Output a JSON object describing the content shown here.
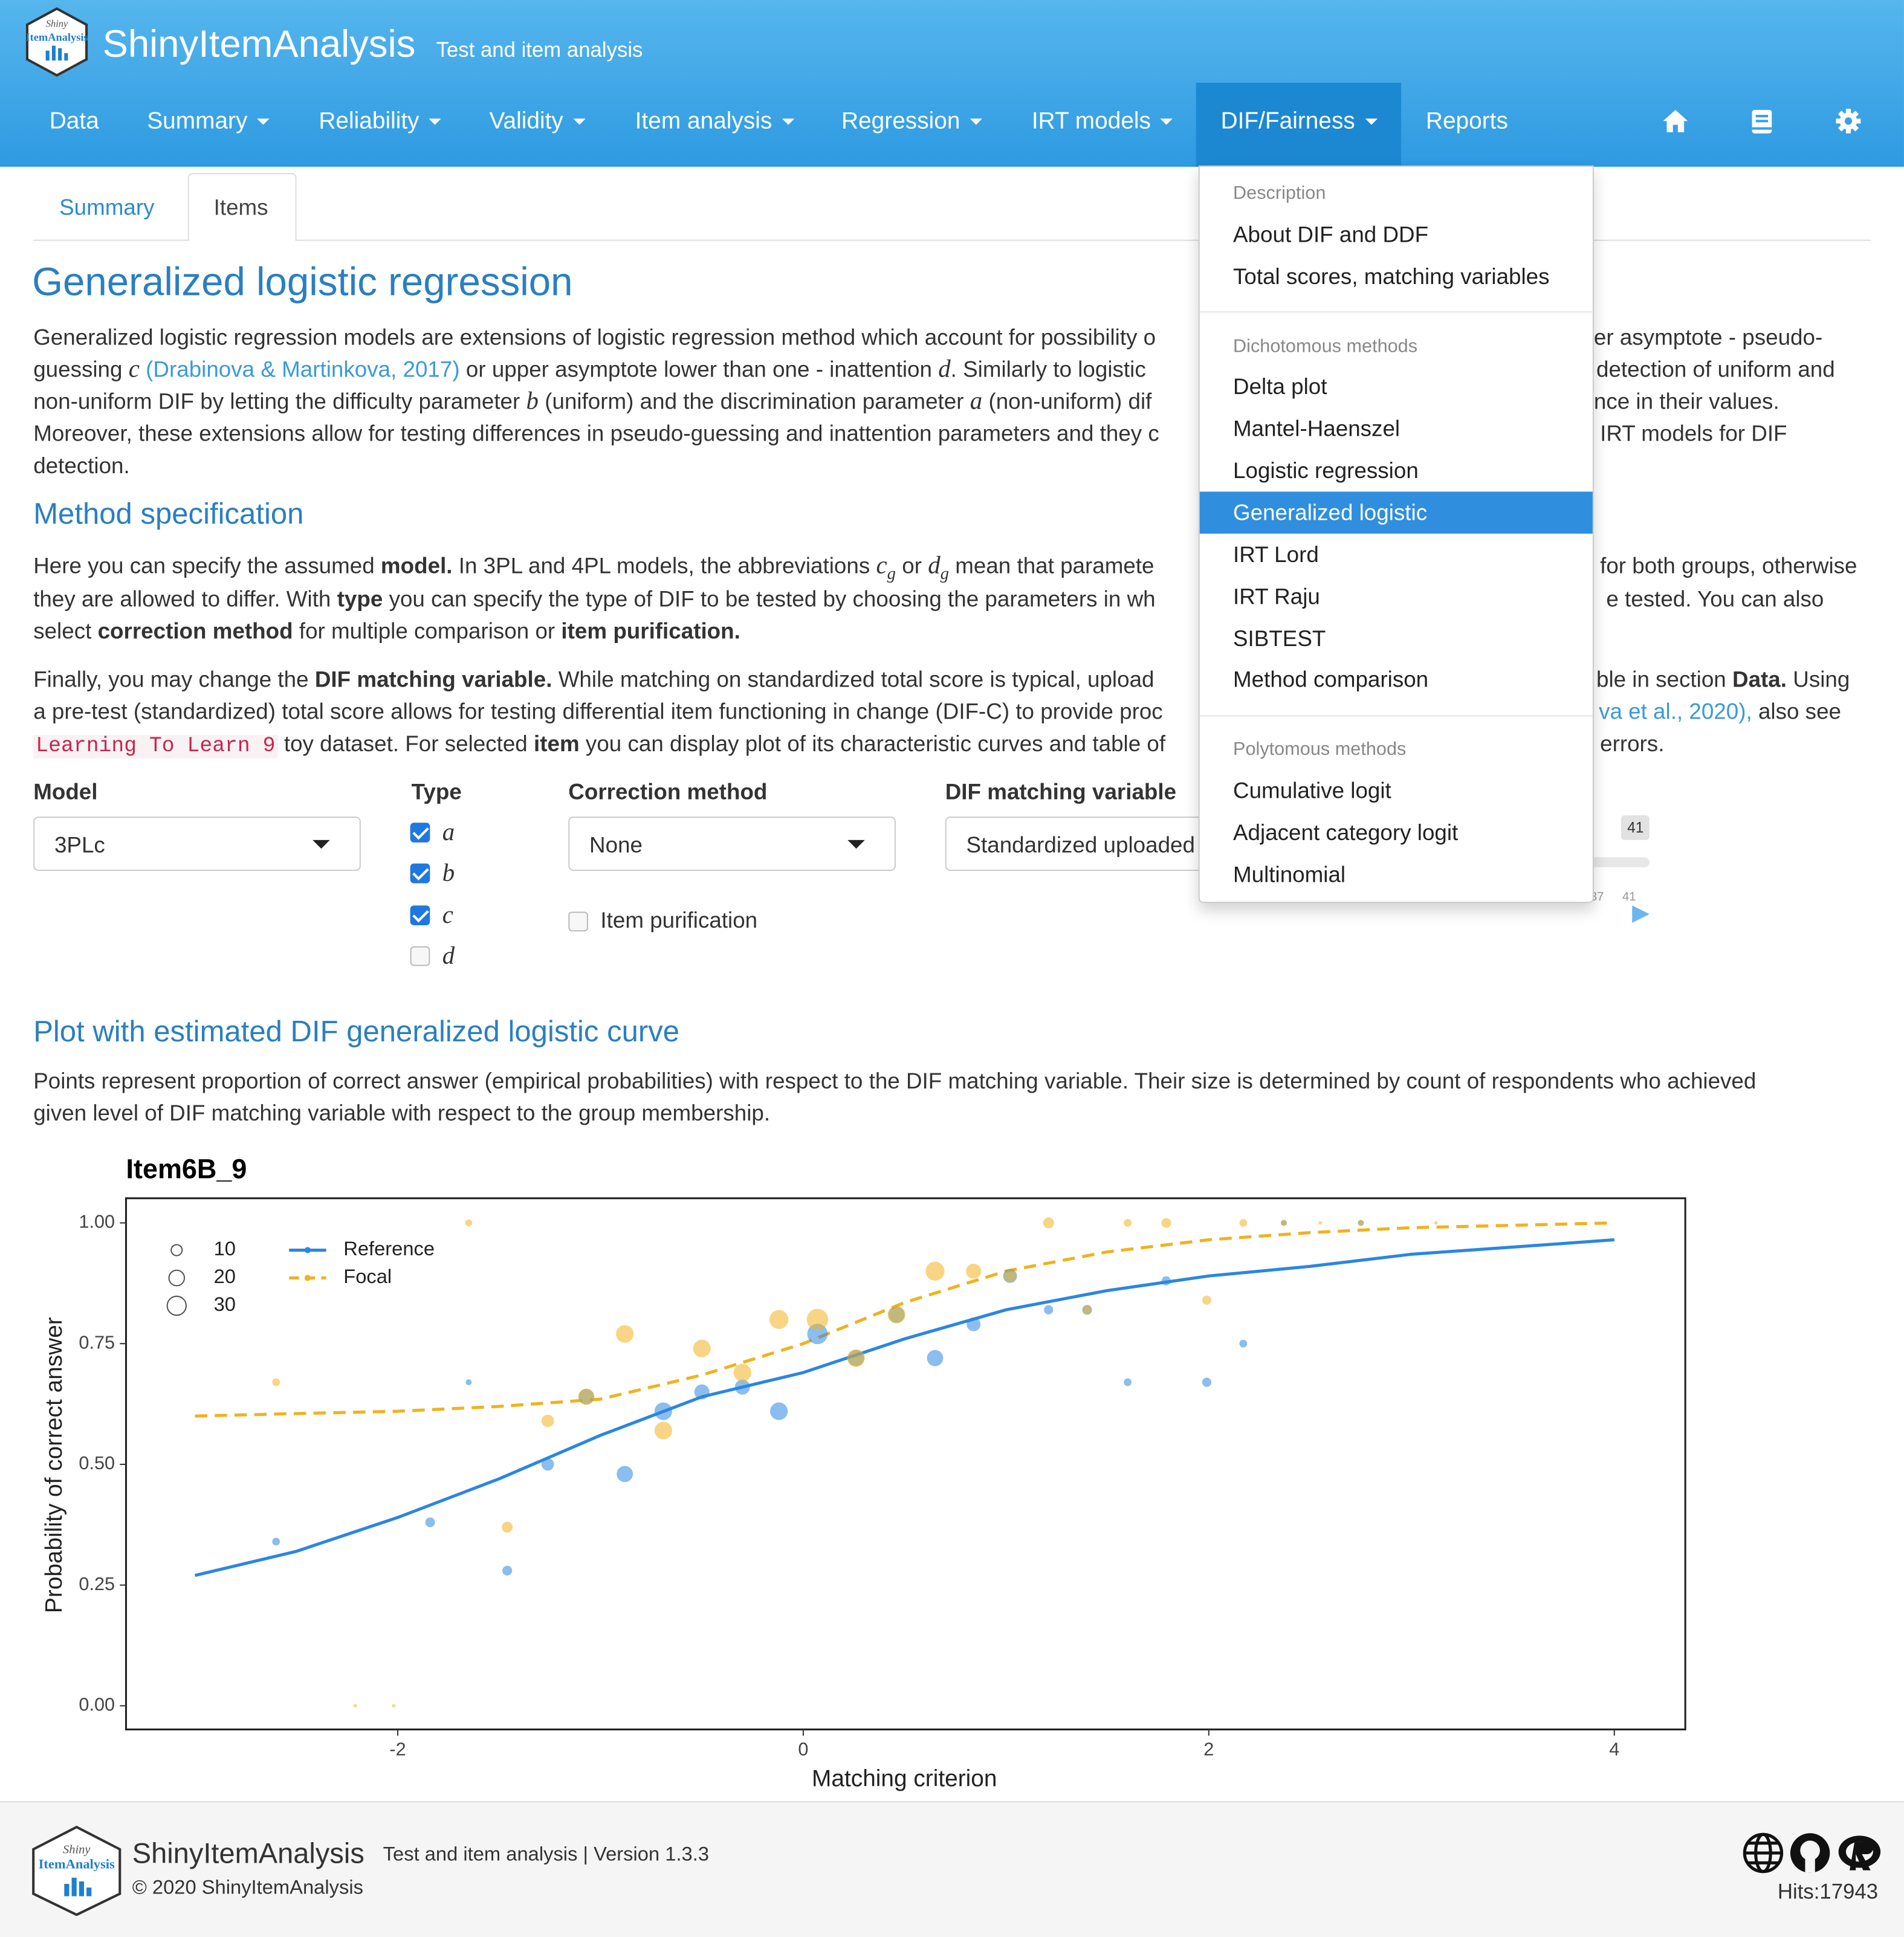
{
  "logo": {
    "top": "Shiny",
    "bottom": "ItemAnalysis"
  },
  "navbar": {
    "title": "ShinyItemAnalysis",
    "subtitle": "Test and item analysis",
    "items": [
      "Data",
      "Summary",
      "Reliability",
      "Validity",
      "Item analysis",
      "Regression",
      "IRT models",
      "DIF/Fairness",
      "Reports"
    ]
  },
  "dropdown": {
    "sections": [
      {
        "header": "Description",
        "items": [
          "About DIF and DDF",
          "Total scores, matching variables"
        ]
      },
      {
        "header": "Dichotomous methods",
        "items": [
          "Delta plot",
          "Mantel-Haenszel",
          "Logistic regression",
          "Generalized logistic",
          "IRT Lord",
          "IRT Raju",
          "SIBTEST",
          "Method comparison"
        ]
      },
      {
        "header": "Polytomous methods",
        "items": [
          "Cumulative logit",
          "Adjacent category logit",
          "Multinomial"
        ]
      }
    ]
  },
  "tabs": [
    "Summary",
    "Items"
  ],
  "heading": "Generalized logistic regression",
  "intro": [
    [
      "Generalized logistic regression models are extensions of logistic regression method which account for possibility o",
      "er asymptote - pseudo-"
    ],
    [
      "guessing",
      "c",
      "(Drabinova & Martinkova, 2017)",
      "or upper asymptote lower than one - inattention",
      "d",
      ". Similarly to logistic",
      "detection of uniform and"
    ],
    [
      "non-uniform DIF by letting the difficulty parameter",
      "b",
      "(uniform) and the discrimination parameter",
      "a",
      "(non-uniform) dif",
      "nce in their values."
    ],
    [
      "Moreover, these extensions allow for testing differences in pseudo-guessing and inattention parameters and they c",
      "IRT models for DIF"
    ],
    [
      "detection."
    ]
  ],
  "method_heading": "Method specification",
  "method": [
    [
      "Here you can specify the assumed",
      "model.",
      "In 3PL and 4PL models, the abbreviations",
      "c",
      "g",
      "or",
      "d",
      "g",
      "mean that paramete",
      "for both groups, otherwise"
    ],
    [
      "they are allowed to differ. With",
      "type",
      "you can specify the type of DIF to be tested by choosing the parameters in wh",
      "e tested. You can also"
    ],
    [
      "select",
      "correction method",
      "for multiple comparison or",
      "item purification."
    ]
  ],
  "matching": [
    [
      "Finally, you may change the",
      "DIF matching variable.",
      "While matching on standardized total score is typical, upload",
      "ble in section",
      "Data.",
      "Using"
    ],
    [
      "a pre-test (standardized) total score allows for testing differential item functioning in change (DIF-C) to provide proc",
      "va et al., 2020),",
      "also see"
    ],
    [
      "Learning To Learn 9",
      "toy dataset. For selected",
      "item",
      "you can display plot of its characteristic curves and table of",
      "errors."
    ]
  ],
  "form": {
    "model": {
      "label": "Model",
      "value": "3PLc"
    },
    "type": {
      "label": "Type",
      "options": [
        "a",
        "b",
        "c",
        "d"
      ],
      "checked": [
        true,
        true,
        true,
        false
      ]
    },
    "correction": {
      "label": "Correction method",
      "value": "None",
      "purification": "Item purification",
      "purification_checked": false
    },
    "matching": {
      "label": "DIF matching variable",
      "value": "Standardized uploaded"
    },
    "slider": {
      "value": 41,
      "ticks": [
        37,
        41
      ]
    }
  },
  "plot_heading": "Plot with estimated DIF generalized logistic curve",
  "plot_text": [
    "Points represent proportion of correct answer (empirical probabilities) with respect to the DIF matching variable. Their size is determined by count of respondents who achieved",
    "given level of DIF matching variable with respect to the group membership."
  ],
  "chart_data": {
    "type": "scatter",
    "title": "Item6B_9",
    "x_label": "Matching criterion",
    "y_label": "Probability of correct answer",
    "xlim": [
      -3.34,
      4.35
    ],
    "ylim": [
      -0.049,
      1.051
    ],
    "xticks": [
      -2,
      0,
      2,
      4
    ],
    "yticks": [
      {
        "value": 0,
        "label": "0.00"
      },
      {
        "value": 0.25,
        "label": "0.25"
      },
      {
        "value": 0.5,
        "label": "0.50"
      },
      {
        "value": 0.75,
        "label": "0.75"
      },
      {
        "value": 1,
        "label": "1.00"
      }
    ],
    "size_legend": [
      10,
      20,
      30
    ],
    "series": [
      {
        "name": "Reference",
        "color": "#2c86e0",
        "linetype": "solid",
        "x": [
          -2.6,
          -1.84,
          -1.65,
          -1.46,
          -1.26,
          -1.07,
          -0.88,
          -0.69,
          -0.5,
          -0.3,
          -0.12,
          0.07,
          0.26,
          0.46,
          0.65,
          0.84,
          1.02,
          1.21,
          1.4,
          1.6,
          1.79,
          1.99,
          2.17,
          2.37,
          2.75
        ],
        "values": [
          0.34,
          0.38,
          0.67,
          0.28,
          0.5,
          0.64,
          0.48,
          0.61,
          0.65,
          0.66,
          0.61,
          0.77,
          0.72,
          0.81,
          0.72,
          0.79,
          0.89,
          0.82,
          0.82,
          0.67,
          0.88,
          0.67,
          0.75,
          1,
          1
        ],
        "sizes": [
          5,
          8,
          3,
          8,
          13,
          20,
          22,
          26,
          19,
          19,
          26,
          35,
          22,
          22,
          22,
          16,
          16,
          7,
          8,
          5,
          7,
          7,
          5,
          3,
          3
        ],
        "curve_x": [
          -3,
          -2.5,
          -2,
          -1.5,
          -1,
          -0.5,
          0,
          0.5,
          1,
          1.5,
          2,
          2.5,
          3,
          3.5,
          4
        ],
        "curve_values": [
          0.27,
          0.32,
          0.39,
          0.47,
          0.56,
          0.64,
          0.69,
          0.76,
          0.82,
          0.86,
          0.89,
          0.91,
          0.935,
          0.95,
          0.965
        ]
      },
      {
        "name": "Focal",
        "color": "#f0b21f",
        "linetype": "dashed",
        "x": [
          -2.6,
          -2.21,
          -2.02,
          -1.65,
          -1.46,
          -1.26,
          -1.07,
          -0.88,
          -0.69,
          -0.5,
          -0.3,
          -0.12,
          0.07,
          0.26,
          0.46,
          0.65,
          0.84,
          1.02,
          1.21,
          1.4,
          1.6,
          1.79,
          1.99,
          2.17,
          2.37,
          2.55,
          2.75,
          3.12
        ],
        "values": [
          0.67,
          0,
          0,
          1,
          0.37,
          0.59,
          0.64,
          0.77,
          0.57,
          0.74,
          0.69,
          0.8,
          0.8,
          0.72,
          0.81,
          0.9,
          0.9,
          0.89,
          1,
          0.82,
          1,
          1,
          0.84,
          1,
          1,
          1,
          1,
          1
        ],
        "sizes": [
          5,
          1,
          1,
          4,
          10,
          13,
          22,
          26,
          26,
          26,
          26,
          30,
          38,
          26,
          26,
          30,
          19,
          13,
          10,
          7,
          5,
          8,
          7,
          5,
          3,
          1,
          3,
          1
        ],
        "curve_x": [
          -3,
          -2.5,
          -2,
          -1.5,
          -1,
          -0.5,
          0,
          0.5,
          1,
          1.5,
          2,
          2.5,
          3,
          3.5,
          4
        ],
        "curve_values": [
          0.6,
          0.605,
          0.61,
          0.62,
          0.635,
          0.685,
          0.75,
          0.835,
          0.9,
          0.94,
          0.965,
          0.98,
          0.99,
          0.995,
          1
        ]
      }
    ]
  },
  "footer": {
    "title": "ShinyItemAnalysis",
    "subtitle": "Test and item analysis | Version 1.3.3",
    "copyright": "© 2020 ShinyItemAnalysis",
    "hits": "Hits:17943"
  }
}
